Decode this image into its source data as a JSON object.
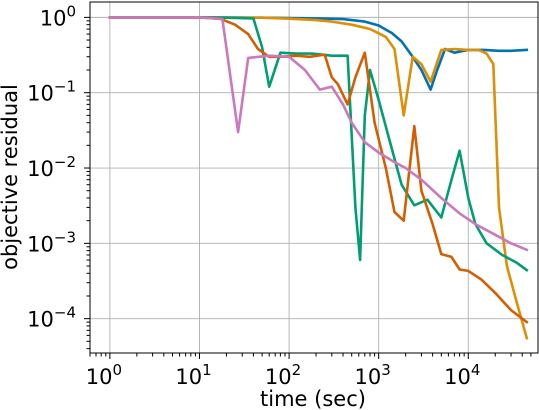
{
  "chart_data": {
    "type": "line",
    "xlabel": "time (sec)",
    "ylabel": "objective residual",
    "xscale": "log",
    "yscale": "log",
    "xlim": [
      0.6,
      60000
    ],
    "ylim": [
      3.5e-05,
      1.6
    ],
    "grid": true,
    "legend": "none",
    "x_ticks": [
      {
        "value": 1,
        "base": "10",
        "exp": "0"
      },
      {
        "value": 10,
        "base": "10",
        "exp": "1"
      },
      {
        "value": 100,
        "base": "10",
        "exp": "2"
      },
      {
        "value": 1000,
        "base": "10",
        "exp": "3"
      },
      {
        "value": 10000,
        "base": "10",
        "exp": "4"
      }
    ],
    "y_ticks": [
      {
        "value": 1,
        "base": "10",
        "exp": "0"
      },
      {
        "value": 0.1,
        "base": "10",
        "exp": "−1"
      },
      {
        "value": 0.01,
        "base": "10",
        "exp": "−2"
      },
      {
        "value": 0.001,
        "base": "10",
        "exp": "−3"
      },
      {
        "value": 0.0001,
        "base": "10",
        "exp": "−4"
      }
    ],
    "series": [
      {
        "color": "#0173b2",
        "points": [
          [
            1,
            1
          ],
          [
            10,
            1
          ],
          [
            50,
            0.99
          ],
          [
            100,
            0.98
          ],
          [
            200,
            0.97
          ],
          [
            400,
            0.95
          ],
          [
            700,
            0.88
          ],
          [
            1000,
            0.78
          ],
          [
            1400,
            0.62
          ],
          [
            1800,
            0.48
          ],
          [
            2400,
            0.3
          ],
          [
            3000,
            0.2
          ],
          [
            3800,
            0.11
          ],
          [
            4500,
            0.2
          ],
          [
            5500,
            0.38
          ],
          [
            7000,
            0.34
          ],
          [
            10000,
            0.37
          ],
          [
            15000,
            0.37
          ],
          [
            22000,
            0.36
          ],
          [
            30000,
            0.36
          ],
          [
            45000,
            0.37
          ]
        ]
      },
      {
        "color": "#de8f05",
        "points": [
          [
            1,
            1
          ],
          [
            10,
            1
          ],
          [
            50,
            0.99
          ],
          [
            100,
            0.96
          ],
          [
            200,
            0.92
          ],
          [
            300,
            0.88
          ],
          [
            500,
            0.8
          ],
          [
            800,
            0.7
          ],
          [
            1200,
            0.55
          ],
          [
            1500,
            0.38
          ],
          [
            1900,
            0.05
          ],
          [
            2400,
            0.3
          ],
          [
            3000,
            0.24
          ],
          [
            3800,
            0.14
          ],
          [
            5000,
            0.37
          ],
          [
            7000,
            0.38
          ],
          [
            10000,
            0.37
          ],
          [
            13000,
            0.37
          ],
          [
            16000,
            0.33
          ],
          [
            19000,
            0.24
          ],
          [
            22000,
            0.003
          ],
          [
            27000,
            0.0005
          ],
          [
            35000,
            0.00016
          ],
          [
            45000,
            5.5e-05
          ]
        ]
      },
      {
        "color": "#029e73",
        "points": [
          [
            1,
            1
          ],
          [
            10,
            1
          ],
          [
            20,
            0.99
          ],
          [
            40,
            0.97
          ],
          [
            50,
            0.4
          ],
          [
            60,
            0.12
          ],
          [
            80,
            0.34
          ],
          [
            120,
            0.33
          ],
          [
            180,
            0.33
          ],
          [
            300,
            0.31
          ],
          [
            450,
            0.31
          ],
          [
            550,
            0.003
          ],
          [
            620,
            0.0006
          ],
          [
            700,
            0.05
          ],
          [
            800,
            0.2
          ],
          [
            1000,
            0.08
          ],
          [
            1300,
            0.025
          ],
          [
            1800,
            0.006
          ],
          [
            2500,
            0.0032
          ],
          [
            3500,
            0.0038
          ],
          [
            5000,
            0.0022
          ],
          [
            6500,
            0.007
          ],
          [
            8000,
            0.017
          ],
          [
            10000,
            0.004
          ],
          [
            12000,
            0.0018
          ],
          [
            16000,
            0.001
          ],
          [
            24000,
            0.0007
          ],
          [
            35000,
            0.00055
          ],
          [
            45000,
            0.00044
          ]
        ]
      },
      {
        "color": "#d55e00",
        "points": [
          [
            1,
            1
          ],
          [
            10,
            1
          ],
          [
            17,
            0.96
          ],
          [
            25,
            0.8
          ],
          [
            35,
            0.6
          ],
          [
            45,
            0.38
          ],
          [
            60,
            0.3
          ],
          [
            80,
            0.3
          ],
          [
            120,
            0.31
          ],
          [
            170,
            0.3
          ],
          [
            250,
            0.32
          ],
          [
            300,
            0.16
          ],
          [
            350,
            0.13
          ],
          [
            450,
            0.07
          ],
          [
            550,
            0.16
          ],
          [
            700,
            0.34
          ],
          [
            900,
            0.04
          ],
          [
            1200,
            0.01
          ],
          [
            1500,
            0.0026
          ],
          [
            1900,
            0.002
          ],
          [
            2500,
            0.036
          ],
          [
            3000,
            0.005
          ],
          [
            4000,
            0.0018
          ],
          [
            5000,
            0.00072
          ],
          [
            6500,
            0.00066
          ],
          [
            8000,
            0.00045
          ],
          [
            10000,
            0.00043
          ],
          [
            14000,
            0.00033
          ],
          [
            20000,
            0.00022
          ],
          [
            30000,
            0.00013
          ],
          [
            45000,
            9e-05
          ]
        ]
      },
      {
        "color": "#cc78bc",
        "points": [
          [
            1,
            1
          ],
          [
            10,
            1
          ],
          [
            18,
            0.95
          ],
          [
            27,
            0.03
          ],
          [
            35,
            0.29
          ],
          [
            60,
            0.31
          ],
          [
            100,
            0.3
          ],
          [
            150,
            0.2
          ],
          [
            220,
            0.11
          ],
          [
            300,
            0.12
          ],
          [
            400,
            0.07
          ],
          [
            500,
            0.04
          ],
          [
            700,
            0.022
          ],
          [
            1000,
            0.016
          ],
          [
            1500,
            0.012
          ],
          [
            2000,
            0.01
          ],
          [
            3000,
            0.007
          ],
          [
            5000,
            0.004
          ],
          [
            8000,
            0.0025
          ],
          [
            12000,
            0.0018
          ],
          [
            20000,
            0.0013
          ],
          [
            30000,
            0.001
          ],
          [
            45000,
            0.00082
          ]
        ]
      }
    ]
  }
}
